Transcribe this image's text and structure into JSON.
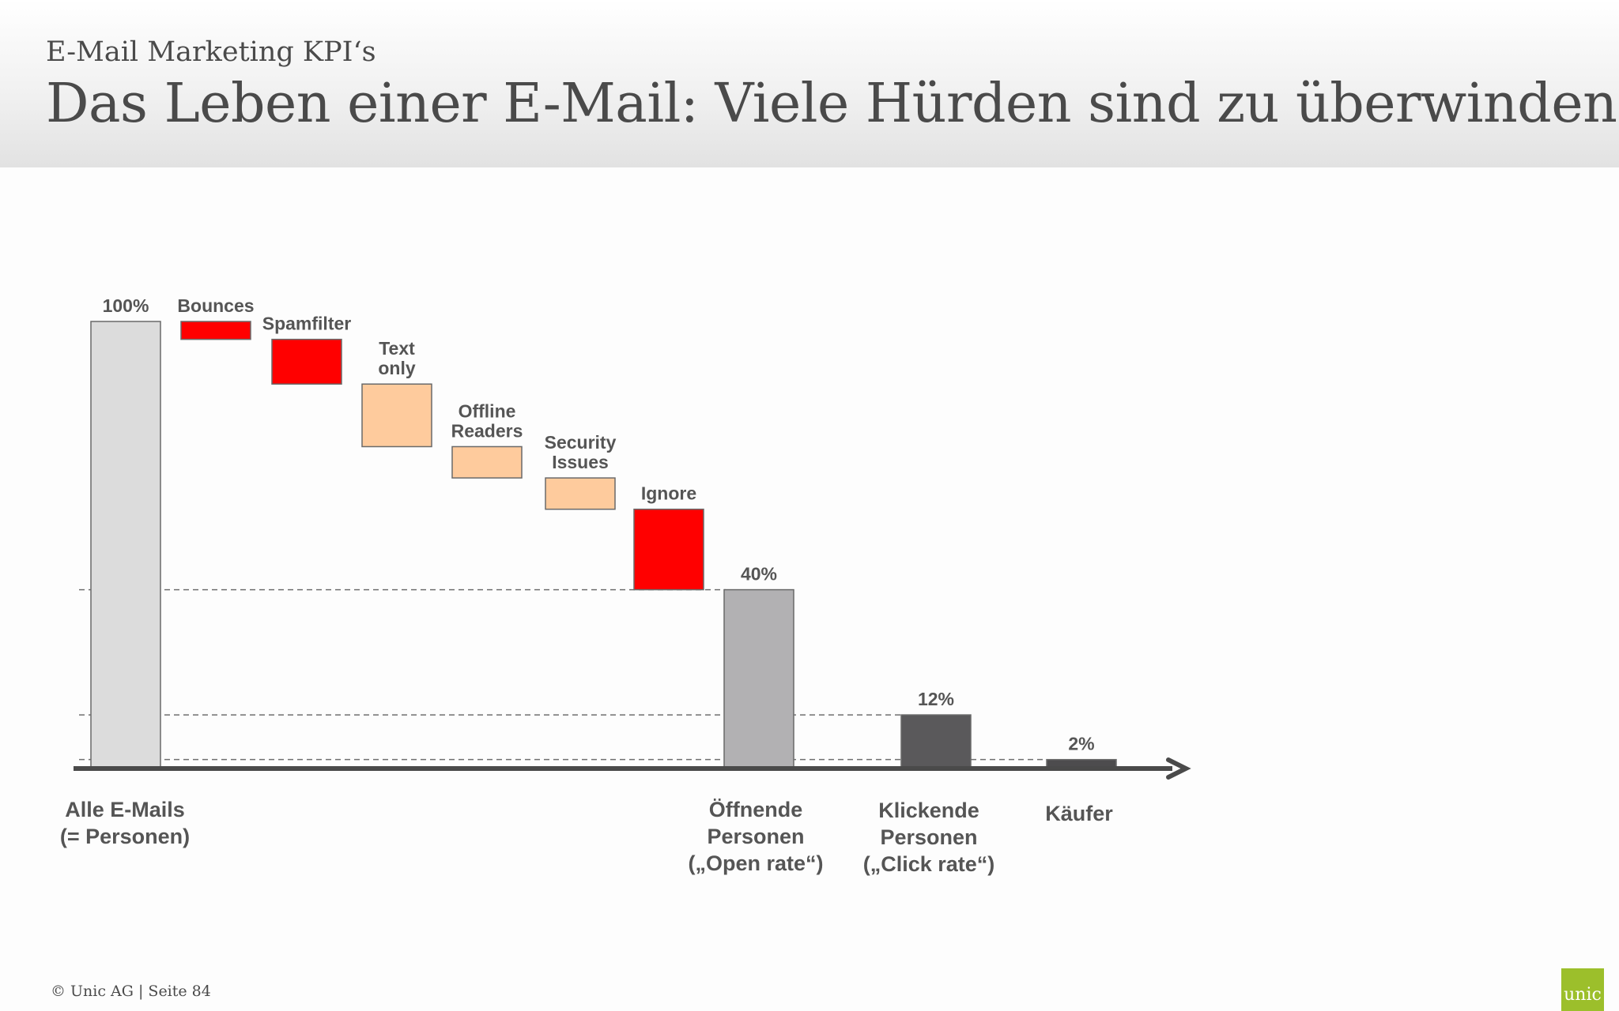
{
  "header": {
    "kicker": "E-Mail Marketing KPI‘s",
    "title": "Das Leben einer E-Mail: Viele Hürden sind zu überwinden"
  },
  "footer": {
    "text": "© Unic AG  |  Seite 84"
  },
  "logo": {
    "text": "unic",
    "color": "#9cbf2b"
  },
  "colors": {
    "total": "#dcdcdc",
    "loss_major": "#ff0000",
    "loss_minor": "#fecb9d",
    "open": "#b2b1b3",
    "click": "#5a595b",
    "buy": "#4d4c4e",
    "axis": "#4a4a4a"
  },
  "chart_data": {
    "type": "waterfall",
    "unit": "%",
    "ylim": [
      0,
      100
    ],
    "grid": "dashed reference lines at 40, 12, 2",
    "steps": [
      {
        "label": "100%",
        "category": "Alle E-Mails\n(= Personen)",
        "kind": "total",
        "start": 0,
        "end": 100,
        "color_key": "total"
      },
      {
        "label": "Bounces",
        "kind": "loss",
        "start": 100,
        "end": 96,
        "color_key": "loss_major"
      },
      {
        "label": "Spamfilter",
        "kind": "loss",
        "start": 96,
        "end": 86,
        "color_key": "loss_major"
      },
      {
        "label": "Text\nonly",
        "kind": "loss",
        "start": 86,
        "end": 72,
        "color_key": "loss_minor"
      },
      {
        "label": "Offline\nReaders",
        "kind": "loss",
        "start": 72,
        "end": 65,
        "color_key": "loss_minor"
      },
      {
        "label": "Security\nIssues",
        "kind": "loss",
        "start": 65,
        "end": 58,
        "color_key": "loss_minor"
      },
      {
        "label": "Ignore",
        "kind": "loss",
        "start": 58,
        "end": 40,
        "color_key": "loss_major"
      },
      {
        "label": "40%",
        "category": "Öffnende\nPersonen\n(„Open rate“)",
        "kind": "total",
        "start": 0,
        "end": 40,
        "color_key": "open"
      },
      {
        "label": "12%",
        "category": "Klickende\nPersonen\n(„Click rate“)",
        "kind": "total",
        "start": 0,
        "end": 12,
        "color_key": "click"
      },
      {
        "label": "2%",
        "category": "Käufer",
        "kind": "total",
        "start": 0,
        "end": 2,
        "color_key": "buy"
      }
    ],
    "reference_lines": [
      40,
      12,
      2
    ]
  }
}
